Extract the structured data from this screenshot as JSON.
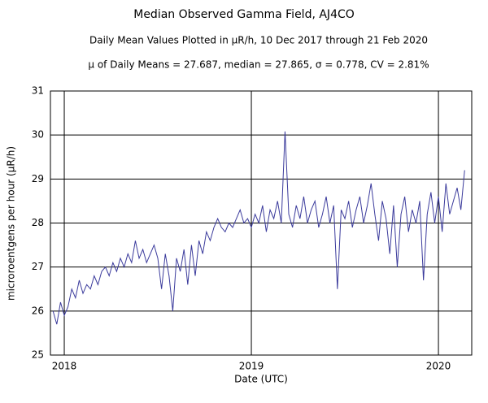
{
  "chart_data": {
    "type": "line",
    "title": "Median Observed Gamma Field, AJ4CO",
    "subtitle": "Daily Mean Values Plotted in μR/h, 10 Dec 2017 through 21 Feb 2020",
    "annotation": "μ of Daily Means = 27.687,   median = 27.865,   σ = 0.778,   CV = 2.81%",
    "xlabel": "Date (UTC)",
    "ylabel": "microroentgens per hour (μR/h)",
    "color": "#3b3b9c",
    "grid": true,
    "xlim": [
      2017.926,
      2020.178
    ],
    "xticks": [
      2018,
      2019,
      2020
    ],
    "ylim": [
      25,
      31
    ],
    "yticks": [
      25,
      26,
      27,
      28,
      29,
      30,
      31
    ],
    "x": [
      2017.94,
      2017.96,
      2017.98,
      2018.0,
      2018.02,
      2018.04,
      2018.06,
      2018.08,
      2018.1,
      2018.12,
      2018.14,
      2018.16,
      2018.18,
      2018.2,
      2018.22,
      2018.24,
      2018.26,
      2018.28,
      2018.3,
      2018.32,
      2018.34,
      2018.36,
      2018.38,
      2018.4,
      2018.42,
      2018.44,
      2018.46,
      2018.48,
      2018.5,
      2018.52,
      2018.54,
      2018.56,
      2018.58,
      2018.6,
      2018.62,
      2018.64,
      2018.66,
      2018.68,
      2018.7,
      2018.72,
      2018.74,
      2018.76,
      2018.78,
      2018.8,
      2018.82,
      2018.84,
      2018.86,
      2018.88,
      2018.9,
      2018.92,
      2018.94,
      2018.96,
      2018.98,
      2019.0,
      2019.02,
      2019.04,
      2019.06,
      2019.08,
      2019.1,
      2019.12,
      2019.14,
      2019.16,
      2019.18,
      2019.2,
      2019.22,
      2019.24,
      2019.26,
      2019.28,
      2019.3,
      2019.32,
      2019.34,
      2019.36,
      2019.38,
      2019.4,
      2019.42,
      2019.44,
      2019.46,
      2019.48,
      2019.5,
      2019.52,
      2019.54,
      2019.56,
      2019.58,
      2019.6,
      2019.62,
      2019.64,
      2019.66,
      2019.68,
      2019.7,
      2019.72,
      2019.74,
      2019.76,
      2019.78,
      2019.8,
      2019.82,
      2019.84,
      2019.86,
      2019.88,
      2019.9,
      2019.92,
      2019.94,
      2019.96,
      2019.98,
      2020.0,
      2020.02,
      2020.04,
      2020.06,
      2020.08,
      2020.1,
      2020.12,
      2020.14
    ],
    "values": [
      26.0,
      25.7,
      26.2,
      25.9,
      26.1,
      26.5,
      26.3,
      26.7,
      26.4,
      26.6,
      26.5,
      26.8,
      26.6,
      26.9,
      27.0,
      26.8,
      27.1,
      26.9,
      27.2,
      27.0,
      27.3,
      27.1,
      27.6,
      27.2,
      27.4,
      27.1,
      27.3,
      27.5,
      27.2,
      26.5,
      27.3,
      26.8,
      26.0,
      27.2,
      26.9,
      27.4,
      26.6,
      27.5,
      26.8,
      27.6,
      27.3,
      27.8,
      27.6,
      27.9,
      28.1,
      27.9,
      27.8,
      28.0,
      27.9,
      28.1,
      28.3,
      28.0,
      28.1,
      27.9,
      28.2,
      28.0,
      28.4,
      27.8,
      28.3,
      28.1,
      28.5,
      28.0,
      30.08,
      28.2,
      27.9,
      28.4,
      28.1,
      28.6,
      28.0,
      28.3,
      28.5,
      27.9,
      28.2,
      28.6,
      28.0,
      28.4,
      26.5,
      28.3,
      28.1,
      28.5,
      27.9,
      28.3,
      28.6,
      28.0,
      28.4,
      28.9,
      28.2,
      27.6,
      28.5,
      28.1,
      27.3,
      28.4,
      27.0,
      28.2,
      28.6,
      27.8,
      28.3,
      28.0,
      28.5,
      26.7,
      28.2,
      28.7,
      28.0,
      28.6,
      27.8,
      28.9,
      28.2,
      28.5,
      28.8,
      28.3,
      29.2
    ]
  }
}
